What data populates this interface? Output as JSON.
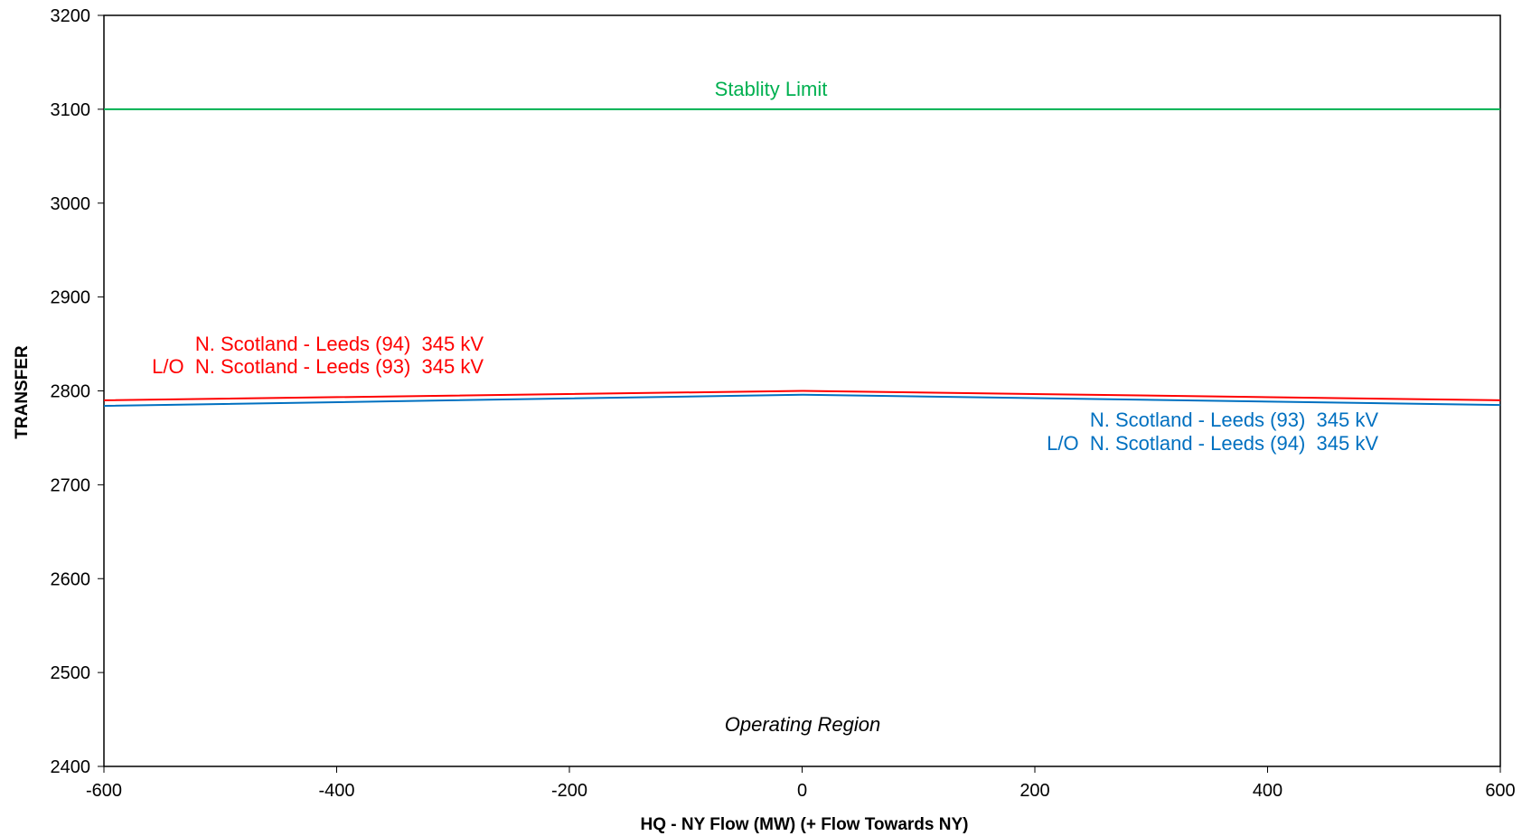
{
  "chart_data": {
    "type": "line",
    "title": "",
    "xlabel": "HQ - NY Flow (MW) (+ Flow Towards NY)",
    "ylabel": "TRANSFER",
    "xlim": [
      -600,
      600
    ],
    "ylim": [
      2400,
      3200
    ],
    "x_ticks": [
      -600,
      -400,
      -200,
      0,
      200,
      400,
      600
    ],
    "y_ticks": [
      2400,
      2500,
      2600,
      2700,
      2800,
      2900,
      3000,
      3100,
      3200
    ],
    "grid": false,
    "legend": "none",
    "series": [
      {
        "key": "stability",
        "color": "#00b050",
        "x": [
          -600,
          600
        ],
        "y": [
          3100,
          3100
        ]
      },
      {
        "key": "red_limit",
        "color": "#ff0000",
        "x": [
          -600,
          0,
          600
        ],
        "y": [
          2790,
          2800,
          2790
        ]
      },
      {
        "key": "blue_limit",
        "color": "#0070c0",
        "x": [
          -600,
          0,
          600
        ],
        "y": [
          2784,
          2796,
          2785
        ]
      }
    ],
    "annotations": [
      {
        "key": "stability_label",
        "lines": [
          "Stablity Limit"
        ],
        "color": "#00b050",
        "italic": false
      },
      {
        "key": "red_label",
        "lines": [
          "N. Scotland - Leeds (94)  345 kV",
          "L/O  N. Scotland - Leeds (93)  345 kV"
        ],
        "color": "#ff0000",
        "italic": false
      },
      {
        "key": "blue_label",
        "lines": [
          "N. Scotland - Leeds (93)  345 kV",
          "L/O  N. Scotland - Leeds (94)  345 kV"
        ],
        "color": "#0070c0",
        "italic": false
      },
      {
        "key": "region_label",
        "lines": [
          "Operating Region"
        ],
        "color": "#000000",
        "italic": true
      }
    ]
  }
}
